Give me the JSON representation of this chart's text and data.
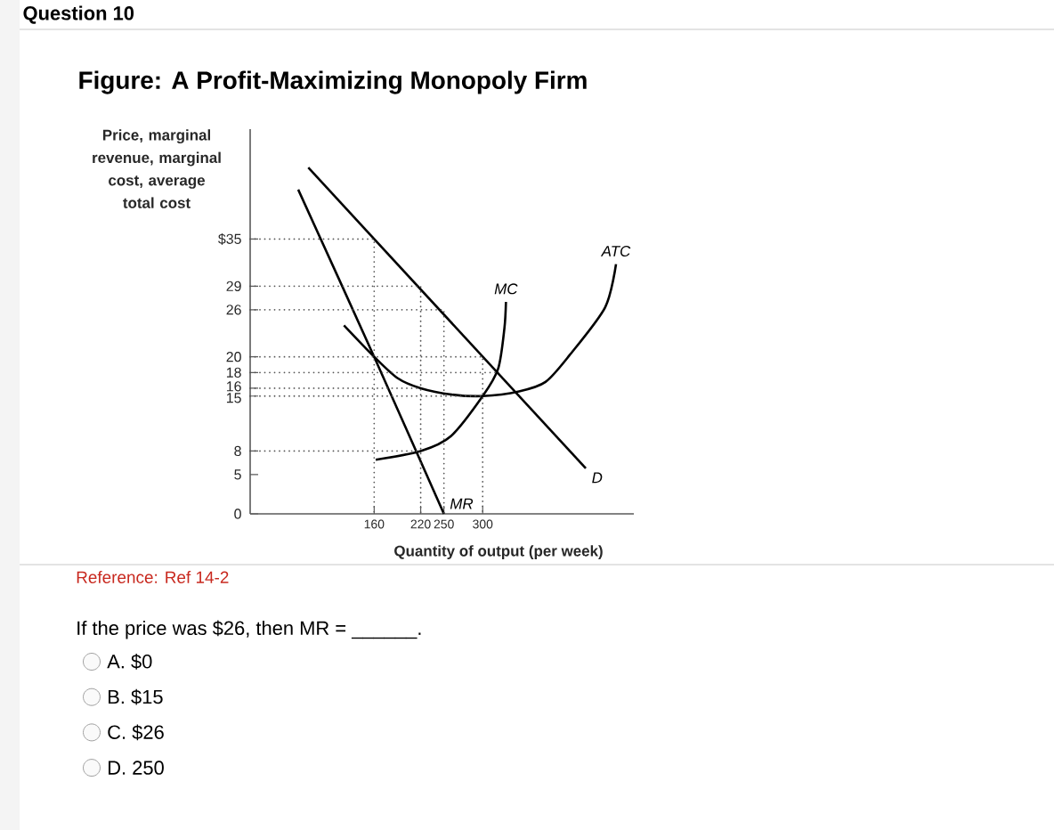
{
  "chart_data": {
    "type": "line",
    "title": "Question 10",
    "subtitle": "Figure: A Profit-Maximizing Monopoly Firm",
    "xlabel": "Quantity of output (per week)",
    "ylabel": "Price, marginal revenue, marginal cost, average total cost",
    "annotations": [
      "Reference: Ref 14-2",
      "If the price was $26, then MR = ______.",
      "A. $0",
      "B. $15",
      "C. $26",
      "D. 250"
    ],
    "xlim": [
      0,
      495
    ],
    "ylim": [
      0,
      49
    ],
    "xticks": [
      160,
      220,
      250,
      300
    ],
    "yticks": [
      0,
      5,
      8,
      15,
      16,
      18,
      20,
      26,
      29,
      {
        "value": 35,
        "label": "$35"
      }
    ],
    "series": [
      {
        "name": "D",
        "color": "#000000",
        "line_style": "solid",
        "x": [
          75,
          433
        ],
        "values": [
          44.1,
          5.8
        ]
      },
      {
        "name": "MR",
        "color": "#000000",
        "line_style": "solid",
        "x": [
          62,
          160,
          250
        ],
        "values": [
          41.3,
          20,
          0
        ]
      },
      {
        "name": "MC",
        "color": "#000000",
        "line_style": "solid",
        "x": [
          162,
          220,
          259,
          300,
          320,
          328,
          330
        ],
        "values": [
          6.9,
          8,
          9.9,
          15,
          18.5,
          23.6,
          27
        ]
      },
      {
        "name": "ATC",
        "color": "#000000",
        "line_style": "solid",
        "x": [
          121,
          160,
          190,
          220,
          260,
          300,
          347,
          381,
          412,
          458,
          472
        ],
        "values": [
          24,
          20,
          17.3,
          16,
          15.2,
          15,
          15.6,
          16.8,
          20.2,
          26.3,
          31.8
        ]
      },
      {
        "color": "#555555",
        "line_style": "dotted",
        "x": [
          0,
          160,
          160
        ],
        "values": [
          35,
          35,
          0
        ]
      },
      {
        "color": "#555555",
        "line_style": "dotted",
        "x": [
          0,
          220,
          220
        ],
        "values": [
          29,
          29,
          0
        ]
      },
      {
        "color": "#555555",
        "line_style": "dotted",
        "x": [
          0,
          250,
          250
        ],
        "values": [
          26,
          26,
          0
        ]
      },
      {
        "color": "#555555",
        "line_style": "dotted",
        "x": [
          0,
          300,
          300
        ],
        "values": [
          20,
          20,
          0
        ]
      },
      {
        "color": "#555555",
        "line_style": "dotted",
        "x": [
          0,
          320
        ],
        "values": [
          18,
          18
        ]
      },
      {
        "color": "#555555",
        "line_style": "dotted",
        "x": [
          0,
          220
        ],
        "values": [
          16,
          16
        ]
      },
      {
        "color": "#555555",
        "line_style": "dotted",
        "x": [
          0,
          300
        ],
        "values": [
          15,
          15
        ]
      },
      {
        "color": "#555555",
        "line_style": "dotted",
        "x": [
          0,
          220
        ],
        "values": [
          8,
          8
        ]
      }
    ]
  }
}
